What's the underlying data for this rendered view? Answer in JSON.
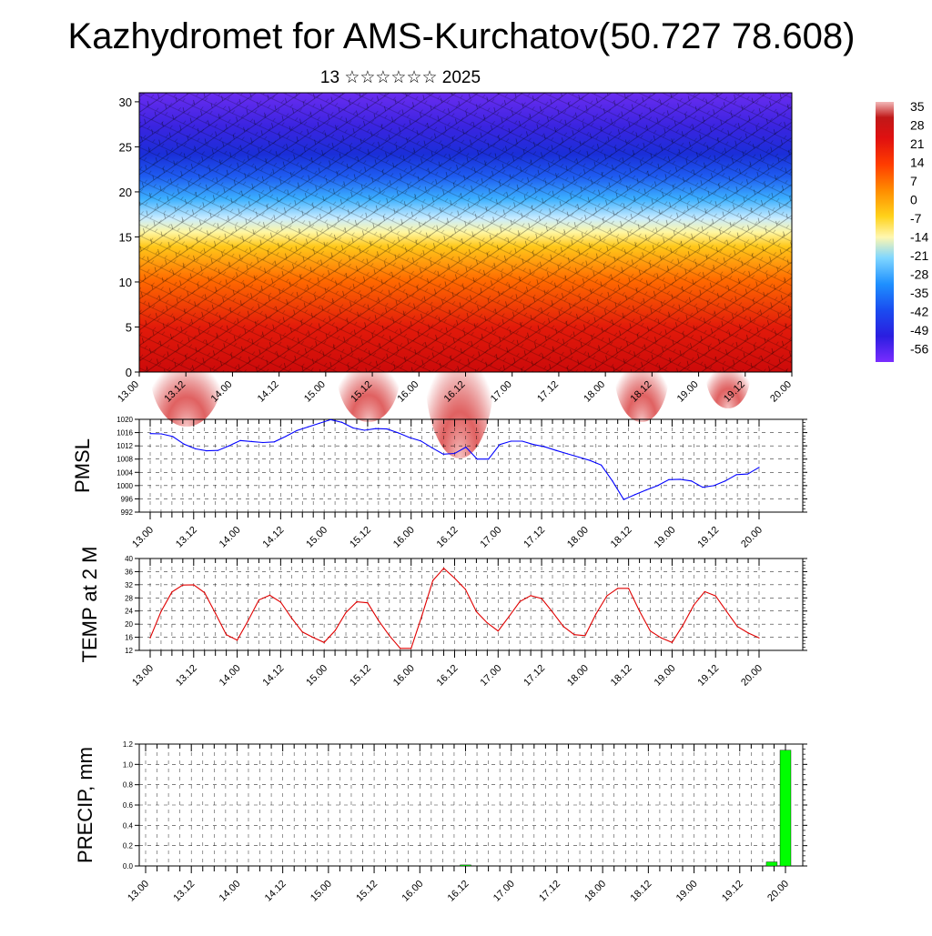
{
  "title": "Kazhydromet for AMS-Kurchatov(50.727 78.608)",
  "subtitle": "13 ☆☆☆☆☆☆ 2025",
  "time_labels": [
    "13.00",
    "13.12",
    "14.00",
    "14.12",
    "15.00",
    "15.12",
    "16.00",
    "16.12",
    "17.00",
    "17.12",
    "18.00",
    "18.12",
    "19.00",
    "19.12",
    "20.00"
  ],
  "chart_data": [
    {
      "type": "heatmap",
      "name": "height-time-cross-section",
      "x": [
        "13.00",
        "13.12",
        "14.00",
        "14.12",
        "15.00",
        "15.12",
        "16.00",
        "16.12",
        "17.00",
        "17.12",
        "18.00",
        "18.12",
        "19.00",
        "19.12",
        "20.00"
      ],
      "ylim": [
        0,
        31
      ],
      "yticks": [
        0,
        5,
        10,
        15,
        20,
        25,
        30
      ],
      "colorbar": {
        "labels": [
          "35",
          "28",
          "21",
          "14",
          "7",
          "0",
          "-7",
          "-14",
          "-21",
          "-28",
          "-35",
          "-42",
          "-49",
          "-56"
        ],
        "range": [
          -60,
          38
        ]
      },
      "wind_barbs": true
    },
    {
      "type": "line",
      "ylabel": "PMSL",
      "ylim": [
        992,
        1020
      ],
      "yticks": [
        "992",
        "996",
        "1000",
        "1004",
        "1008",
        "1012",
        "1016",
        "1020"
      ],
      "color": "#0000ff",
      "values": [
        1015.7,
        1015.6,
        1014.8,
        1012.5,
        1011.1,
        1010.5,
        1010.6,
        1012.0,
        1013.6,
        1013.3,
        1013.0,
        1013.2,
        1014.8,
        1016.6,
        1017.7,
        1018.8,
        1019.9,
        1019.1,
        1017.4,
        1016.7,
        1017.2,
        1017.1,
        1015.9,
        1014.5,
        1013.5,
        1011.4,
        1009.5,
        1009.7,
        1011.6,
        1008.0,
        1008.0,
        1012.4,
        1013.4,
        1013.4,
        1012.4,
        1011.7,
        1010.6,
        1009.6,
        1008.6,
        1007.6,
        1006.2,
        1001.4,
        995.8,
        997.3,
        998.7,
        1000.0,
        1001.8,
        1001.9,
        1001.4,
        999.5,
        1000.0,
        1001.4,
        1003.3,
        1003.5,
        1005.5
      ],
      "xlabels": [
        "13.00",
        "13.12",
        "14.00",
        "14.12",
        "15.00",
        "15.12",
        "16.00",
        "16.12",
        "17.00",
        "17.12",
        "18.00",
        "18.12",
        "19.00",
        "19.12",
        "20.00"
      ]
    },
    {
      "type": "line",
      "ylabel": "TEMP at 2 M",
      "ylim": [
        12,
        40
      ],
      "yticks": [
        "12",
        "16",
        "20",
        "24",
        "28",
        "32",
        "36",
        "40"
      ],
      "color": "#e00000",
      "values": [
        15.8,
        23.8,
        29.8,
        31.9,
        32.0,
        29.6,
        23.3,
        16.8,
        15.1,
        21.0,
        27.4,
        28.8,
        26.7,
        21.9,
        17.6,
        15.9,
        14.4,
        18.0,
        23.5,
        26.8,
        26.5,
        21.1,
        16.5,
        12.6,
        12.6,
        22.7,
        33.3,
        37.0,
        34.0,
        30.6,
        23.8,
        20.4,
        17.9,
        22.3,
        26.9,
        28.7,
        27.8,
        23.7,
        19.3,
        16.8,
        16.5,
        23.1,
        28.6,
        30.9,
        30.9,
        24.0,
        17.9,
        15.8,
        14.4,
        19.7,
        25.8,
        29.9,
        28.6,
        23.9,
        19.3,
        17.3,
        15.8
      ],
      "xlabels": [
        "13.00",
        "13.12",
        "14.00",
        "14.12",
        "15.00",
        "15.12",
        "16.00",
        "16.12",
        "17.00",
        "17.12",
        "18.00",
        "18.12",
        "19.00",
        "19.12",
        "20.00"
      ]
    },
    {
      "type": "bar",
      "ylabel": "PRECIP, mm",
      "ylim": [
        0,
        1.2
      ],
      "yticks": [
        "0.0",
        "0.2",
        "0.4",
        "0.6",
        "0.8",
        "1.0",
        "1.2"
      ],
      "color": "#00ff00",
      "bars": [
        {
          "x": 16.5,
          "value": 0.01
        },
        {
          "x": 19.85,
          "value": 0.04
        },
        {
          "x": 20.0,
          "value": 1.14
        }
      ],
      "xlabels": [
        "13.00",
        "13.12",
        "14.00",
        "14.12",
        "15.00",
        "15.12",
        "16.00",
        "16.12",
        "17.00",
        "17.12",
        "18.00",
        "18.12",
        "19.00",
        "19.12",
        "20.00"
      ]
    }
  ]
}
